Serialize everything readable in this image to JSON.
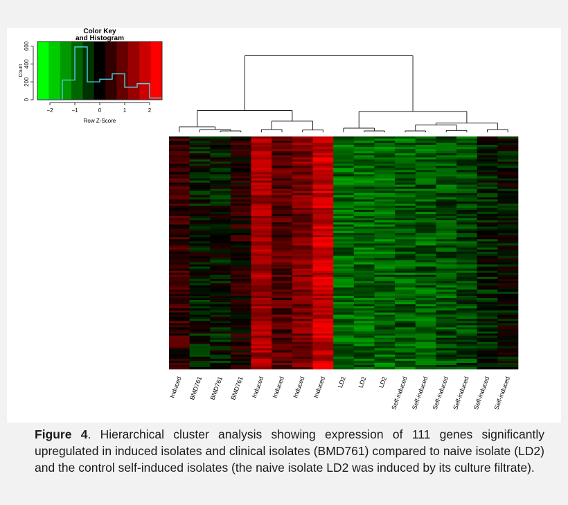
{
  "figure": {
    "caption_label": "Figure 4",
    "caption_text": ". Hierarchical cluster analysis showing expression of 111 genes significantly upregulated in induced isolates and clinical isolates (BMD761) compared to naive isolate (LD2) and the control self-induced isolates (the naive isolate LD2 was induced by its culture filtrate)."
  },
  "chart_data": [
    {
      "type": "heatmap",
      "title": "",
      "columns": [
        "Induced",
        "BMD761",
        "BMD761",
        "BMD761",
        "Induced",
        "Induced",
        "Induced",
        "Induced",
        "LD2",
        "LD2",
        "LD2",
        "Self-induced",
        "Self-induced",
        "Self-induced",
        "Self-induced",
        "Self-induced",
        "Self-induced"
      ],
      "n_genes": 111,
      "column_mean_zscore": [
        0.5,
        -0.2,
        -0.2,
        0.3,
        1.6,
        0.8,
        1.2,
        2.0,
        -1.0,
        -1.0,
        -1.0,
        -0.9,
        -0.9,
        -0.8,
        -0.7,
        -0.3,
        -0.1
      ],
      "color_scale": {
        "low": "#00ff00",
        "mid": "#000000",
        "high": "#ff0000",
        "range": [
          -2.5,
          2.5
        ]
      },
      "column_dendrogram": "top",
      "row_dendrogram": "none"
    },
    {
      "type": "bar",
      "title": "Color Key and Histogram",
      "xlabel": "Row Z-Score",
      "ylabel": "Count",
      "xlim": [
        -2.5,
        2.5
      ],
      "ylim": [
        0,
        650
      ],
      "x_ticks": [
        "-2",
        "-1",
        "0",
        "1",
        "2"
      ],
      "y_ticks": [
        "0",
        "200",
        "400",
        "600"
      ],
      "bin_edges": [
        -2.5,
        -2.0,
        -1.5,
        -1.0,
        -0.5,
        0.0,
        0.5,
        1.0,
        1.5,
        2.0,
        2.5
      ],
      "counts": [
        0,
        0,
        220,
        590,
        200,
        230,
        290,
        140,
        180,
        20
      ],
      "bin_colors": [
        "#00ff00",
        "#00cc00",
        "#009900",
        "#006600",
        "#003300",
        "#000000",
        "#330000",
        "#660000",
        "#990000",
        "#cc0000",
        "#ff0000"
      ]
    }
  ]
}
